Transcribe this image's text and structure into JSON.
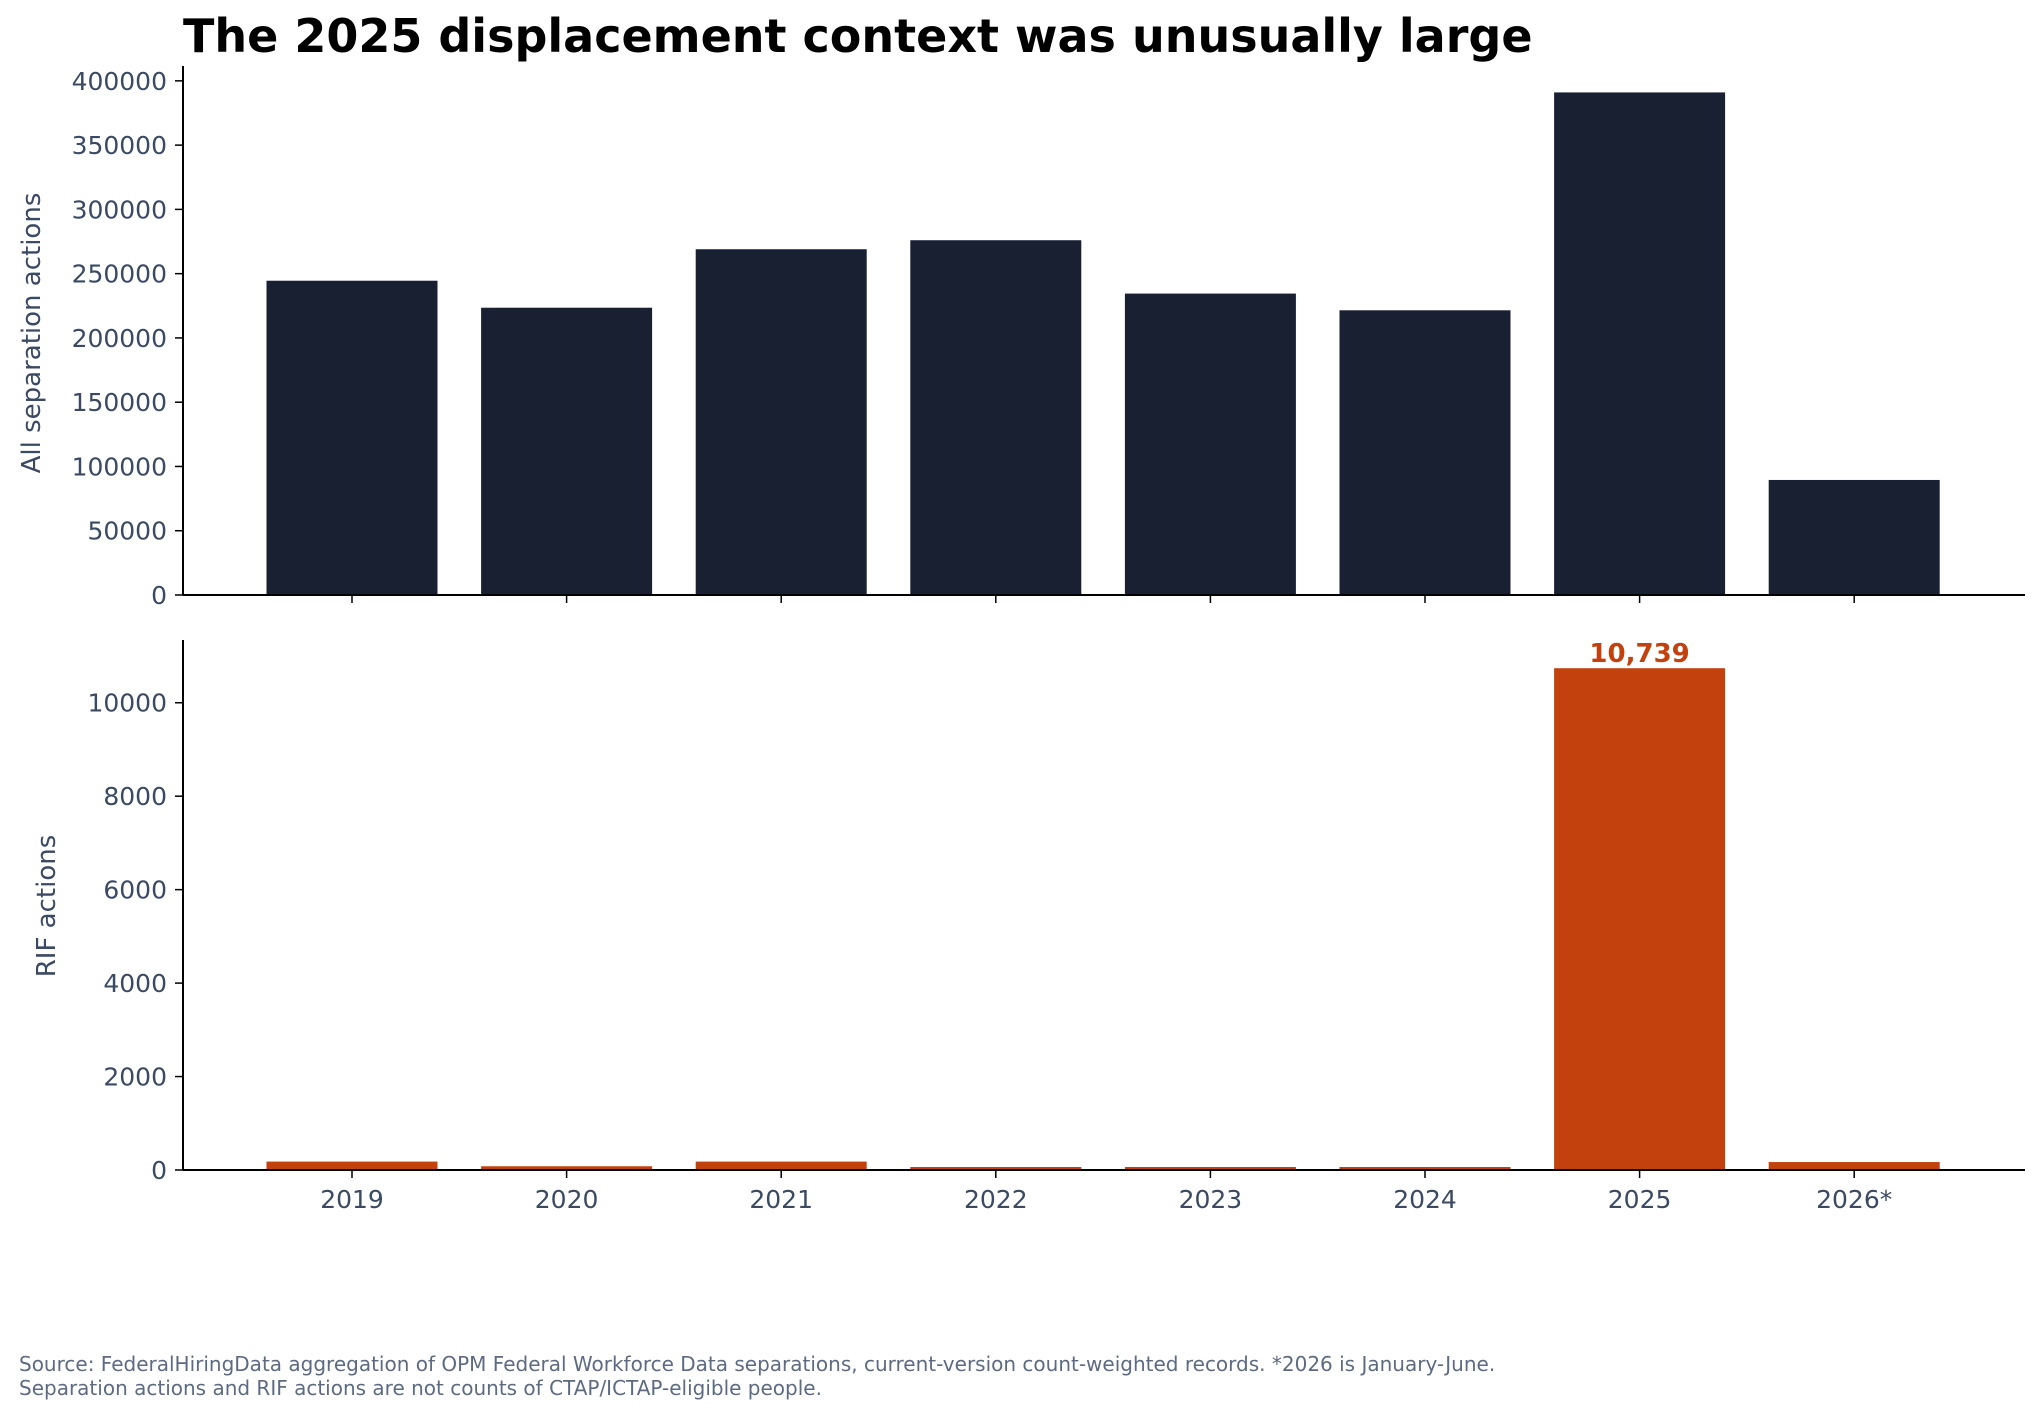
{
  "title": "The 2025 displacement context was unusually large",
  "colors": {
    "top_bars": "#182032",
    "bottom_bars": "#c2410c",
    "text": "#3b4a63",
    "axis": "#000000"
  },
  "chart_data": [
    {
      "type": "bar",
      "title": "The 2025 displacement context was unusually large",
      "categories": [
        "2019",
        "2020",
        "2021",
        "2022",
        "2023",
        "2024",
        "2025",
        "2026*"
      ],
      "values": [
        244500,
        223500,
        269000,
        276000,
        234500,
        221500,
        391000,
        89500
      ],
      "ylabel": "All separation actions",
      "xlabel": "",
      "ylim": [
        0,
        410000
      ],
      "yticks": [
        "0",
        "50000",
        "100000",
        "150000",
        "200000",
        "250000",
        "300000",
        "350000",
        "400000"
      ],
      "tick_labels_x_shown": false,
      "grid": false
    },
    {
      "type": "bar",
      "categories": [
        "2019",
        "2020",
        "2021",
        "2022",
        "2023",
        "2024",
        "2025",
        "2026*"
      ],
      "values": [
        180,
        80,
        180,
        60,
        30,
        60,
        10739,
        170
      ],
      "ylabel": "RIF actions",
      "xlabel": "",
      "ylim": [
        0,
        11300
      ],
      "yticks": [
        "0",
        "2000",
        "4000",
        "6000",
        "8000",
        "10000"
      ],
      "data_labels": [
        {
          "category": "2025",
          "text": "10,739"
        }
      ],
      "tick_labels_x_shown": true,
      "grid": false
    }
  ],
  "footnote": {
    "line1": "Source: FederalHiringData aggregation of OPM Federal Workforce Data separations, current-version count-weighted records. *2026 is January-June.",
    "line2": "Separation actions and RIF actions are not counts of CTAP/ICTAP-eligible people."
  }
}
